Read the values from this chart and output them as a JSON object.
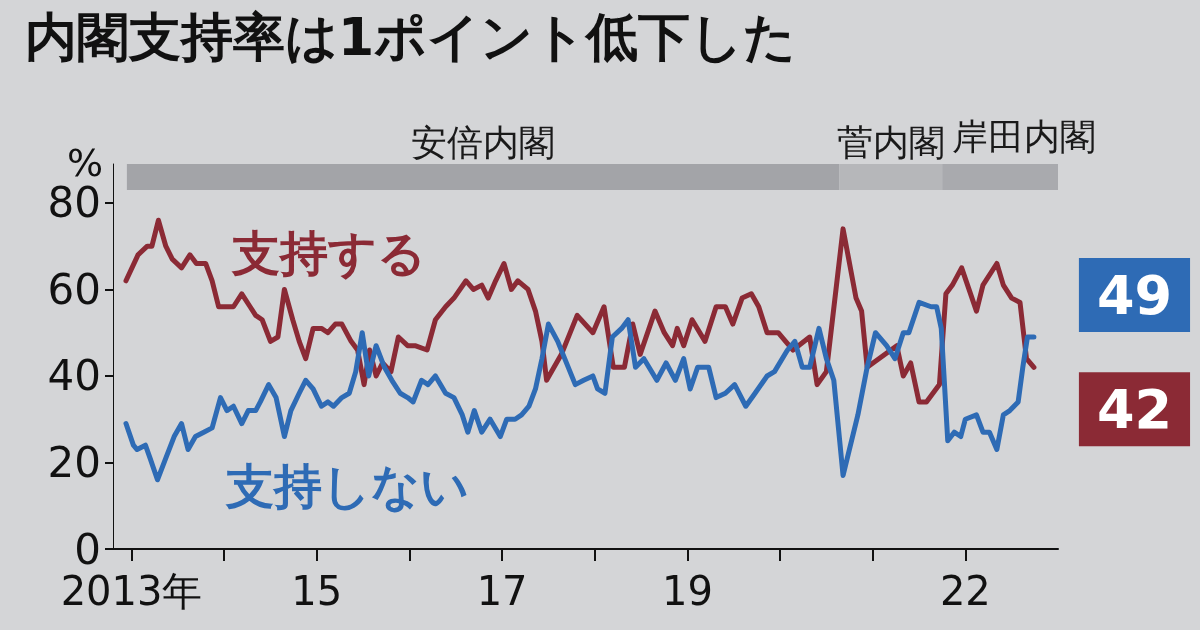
{
  "chart_data": {
    "type": "line",
    "title": "内閣支持率は1ポイント低下した",
    "ylabel": "%",
    "xlim": [
      2012.8,
      2023
    ],
    "ylim": [
      0,
      89
    ],
    "yticks": [
      0,
      20,
      40,
      60,
      80
    ],
    "xticks": [
      {
        "value": 2013,
        "label": "2013年"
      },
      {
        "value": 2014,
        "label": null
      },
      {
        "value": 2015,
        "label": "15"
      },
      {
        "value": 2016,
        "label": null
      },
      {
        "value": 2017,
        "label": "17"
      },
      {
        "value": 2018,
        "label": null
      },
      {
        "value": 2019,
        "label": "19"
      },
      {
        "value": 2020,
        "label": null
      },
      {
        "value": 2021,
        "label": null
      },
      {
        "value": 2022,
        "label": "22"
      }
    ],
    "grid": false,
    "legend": false,
    "marker": "none",
    "bands": [
      {
        "axis": "x",
        "from": 2012.95,
        "to": 2020.64,
        "label": "安倍内閣",
        "color": "#a3a4a8"
      },
      {
        "axis": "x",
        "from": 2020.64,
        "to": 2021.75,
        "label": "菅内閣",
        "color": "#b6b7ba"
      },
      {
        "axis": "x",
        "from": 2021.75,
        "to": 2023,
        "label": "岸田内閣",
        "color": "#a9aaae"
      }
    ],
    "series": [
      {
        "name": "支持する",
        "color": "#8b2a35",
        "x": [
          2012.94,
          2013.07,
          2013.17,
          2013.22,
          2013.29,
          2013.37,
          2013.44,
          2013.54,
          2013.63,
          2013.7,
          2013.8,
          2013.87,
          2013.94,
          2014.02,
          2014.1,
          2014.19,
          2014.28,
          2014.34,
          2014.41,
          2014.5,
          2014.58,
          2014.65,
          2014.74,
          2014.81,
          2014.88,
          2014.96,
          2015.05,
          2015.12,
          2015.2,
          2015.27,
          2015.37,
          2015.44,
          2015.51,
          2015.57,
          2015.64,
          2015.71,
          2015.8,
          2015.88,
          2015.98,
          2016.06,
          2016.19,
          2016.28,
          2016.39,
          2016.48,
          2016.61,
          2016.69,
          2016.78,
          2016.85,
          2016.93,
          2017.02,
          2017.1,
          2017.17,
          2017.28,
          2017.36,
          2017.43,
          2017.48,
          2017.64,
          2017.81,
          2017.98,
          2018.1,
          2018.2,
          2018.32,
          2018.41,
          2018.49,
          2018.65,
          2018.75,
          2018.84,
          2018.89,
          2018.96,
          2019.05,
          2019.19,
          2019.31,
          2019.41,
          2019.49,
          2019.59,
          2019.69,
          2019.77,
          2019.86,
          2019.98,
          2020.14,
          2020.32,
          2020.4,
          2020.5,
          2020.68,
          2020.82,
          2020.88,
          2020.94,
          2021.26,
          2021.33,
          2021.41,
          2021.5,
          2021.58,
          2021.72,
          2021.79,
          2021.86,
          2021.96,
          2022.12,
          2022.19,
          2022.34,
          2022.41,
          2022.5,
          2022.59,
          2022.66,
          2022.74
        ],
        "values": [
          62,
          68,
          70,
          70,
          76,
          70,
          67,
          65,
          68,
          66,
          66,
          62,
          56,
          56,
          56,
          59,
          56,
          54,
          53,
          48,
          49,
          60,
          53,
          48,
          44,
          51,
          51,
          50,
          52,
          52,
          48,
          46,
          38,
          46,
          40,
          43,
          41,
          49,
          47,
          47,
          46,
          53,
          56,
          58,
          62,
          60,
          61,
          58,
          62,
          66,
          60,
          62,
          60,
          55,
          48,
          39,
          45,
          54,
          50,
          56,
          42,
          42,
          52,
          45,
          55,
          50,
          47,
          51,
          47,
          53,
          48,
          56,
          56,
          52,
          58,
          59,
          56,
          50,
          50,
          46,
          49,
          38,
          41,
          74,
          58,
          55,
          42,
          47,
          40,
          43,
          34,
          34,
          38,
          59,
          61,
          65,
          55,
          61,
          66,
          61,
          58,
          57,
          44,
          42
        ],
        "value_labels": [
          null,
          null,
          null,
          null,
          null,
          null,
          null,
          null,
          null,
          null,
          null,
          null,
          null,
          null,
          null,
          null,
          null,
          null,
          null,
          null,
          null,
          null,
          null,
          null,
          null,
          null,
          null,
          null,
          null,
          null,
          null,
          null,
          null,
          null,
          null,
          null,
          null,
          null,
          null,
          null,
          null,
          null,
          null,
          null,
          null,
          null,
          null,
          null,
          null,
          null,
          null,
          null,
          null,
          null,
          null,
          null,
          null,
          null,
          null,
          null,
          null,
          null,
          null,
          null,
          null,
          null,
          null,
          null,
          null,
          null,
          null,
          null,
          null,
          null,
          null,
          null,
          null,
          null,
          null,
          null,
          null,
          null,
          null,
          null,
          null,
          null,
          null,
          null,
          null,
          null,
          null,
          null,
          null,
          null,
          null,
          null,
          null,
          null,
          null,
          null,
          null,
          null,
          null,
          "42"
        ]
      },
      {
        "name": "支持しない",
        "color": "#2e6bb5",
        "x": [
          2012.94,
          2013.02,
          2013.06,
          2013.15,
          2013.2,
          2013.28,
          2013.37,
          2013.46,
          2013.54,
          2013.61,
          2013.69,
          2013.78,
          2013.87,
          2013.96,
          2014.03,
          2014.1,
          2014.19,
          2014.26,
          2014.34,
          2014.39,
          2014.48,
          2014.56,
          2014.65,
          2014.72,
          2014.81,
          2014.88,
          2014.96,
          2015.05,
          2015.12,
          2015.18,
          2015.27,
          2015.35,
          2015.42,
          2015.49,
          2015.56,
          2015.64,
          2015.73,
          2015.81,
          2015.9,
          2015.98,
          2016.04,
          2016.13,
          2016.2,
          2016.28,
          2016.39,
          2016.48,
          2016.57,
          2016.63,
          2016.7,
          2016.78,
          2016.87,
          2016.98,
          2017.05,
          2017.14,
          2017.21,
          2017.29,
          2017.36,
          2017.43,
          2017.5,
          2017.6,
          2017.79,
          2017.88,
          2017.98,
          2018.03,
          2018.11,
          2018.19,
          2018.29,
          2018.36,
          2018.44,
          2018.53,
          2018.67,
          2018.77,
          2018.87,
          2018.96,
          2019.03,
          2019.11,
          2019.23,
          2019.31,
          2019.41,
          2019.51,
          2019.63,
          2019.73,
          2019.86,
          2019.94,
          2020.08,
          2020.16,
          2020.24,
          2020.32,
          2020.42,
          2020.5,
          2020.58,
          2020.68,
          2020.84,
          2020.94,
          2021.03,
          2021.15,
          2021.24,
          2021.33,
          2021.39,
          2021.5,
          2021.63,
          2021.69,
          2021.74,
          2021.81,
          2021.88,
          2021.95,
          2022.0,
          2022.12,
          2022.19,
          2022.26,
          2022.34,
          2022.41,
          2022.48,
          2022.57,
          2022.62,
          2022.67,
          2022.74
        ],
        "values": [
          29,
          24,
          23,
          24,
          21,
          16,
          21,
          26,
          29,
          23,
          26,
          27,
          28,
          35,
          32,
          33,
          29,
          32,
          32,
          34,
          38,
          35,
          26,
          32,
          36,
          39,
          37,
          33,
          34,
          33,
          35,
          36,
          41,
          50,
          40,
          47,
          42,
          39,
          36,
          35,
          34,
          39,
          38,
          40,
          36,
          35,
          31,
          27,
          32,
          27,
          30,
          26,
          30,
          30,
          31,
          33,
          37,
          44,
          52,
          48,
          38,
          39,
          40,
          37,
          36,
          49,
          51,
          53,
          42,
          44,
          39,
          43,
          39,
          44,
          37,
          42,
          42,
          35,
          36,
          38,
          33,
          36,
          40,
          41,
          46,
          48,
          42,
          42,
          51,
          44,
          39,
          17,
          31,
          42,
          50,
          47,
          44,
          50,
          50,
          57,
          56,
          56,
          51,
          25,
          27,
          26,
          30,
          31,
          27,
          27,
          23,
          31,
          32,
          34,
          42,
          49,
          49
        ],
        "value_labels": [
          null,
          null,
          null,
          null,
          null,
          null,
          null,
          null,
          null,
          null,
          null,
          null,
          null,
          null,
          null,
          null,
          null,
          null,
          null,
          null,
          null,
          null,
          null,
          null,
          null,
          null,
          null,
          null,
          null,
          null,
          null,
          null,
          null,
          null,
          null,
          null,
          null,
          null,
          null,
          null,
          null,
          null,
          null,
          null,
          null,
          null,
          null,
          null,
          null,
          null,
          null,
          null,
          null,
          null,
          null,
          null,
          null,
          null,
          null,
          null,
          null,
          null,
          null,
          null,
          null,
          null,
          null,
          null,
          null,
          null,
          null,
          null,
          null,
          null,
          null,
          null,
          null,
          null,
          null,
          null,
          null,
          null,
          null,
          null,
          null,
          null,
          null,
          null,
          null,
          null,
          null,
          null,
          null,
          null,
          null,
          null,
          null,
          null,
          null,
          null,
          null,
          null,
          null,
          null,
          null,
          null,
          null,
          null,
          null,
          null,
          null,
          null,
          null,
          null,
          null,
          null,
          "49"
        ]
      }
    ]
  }
}
